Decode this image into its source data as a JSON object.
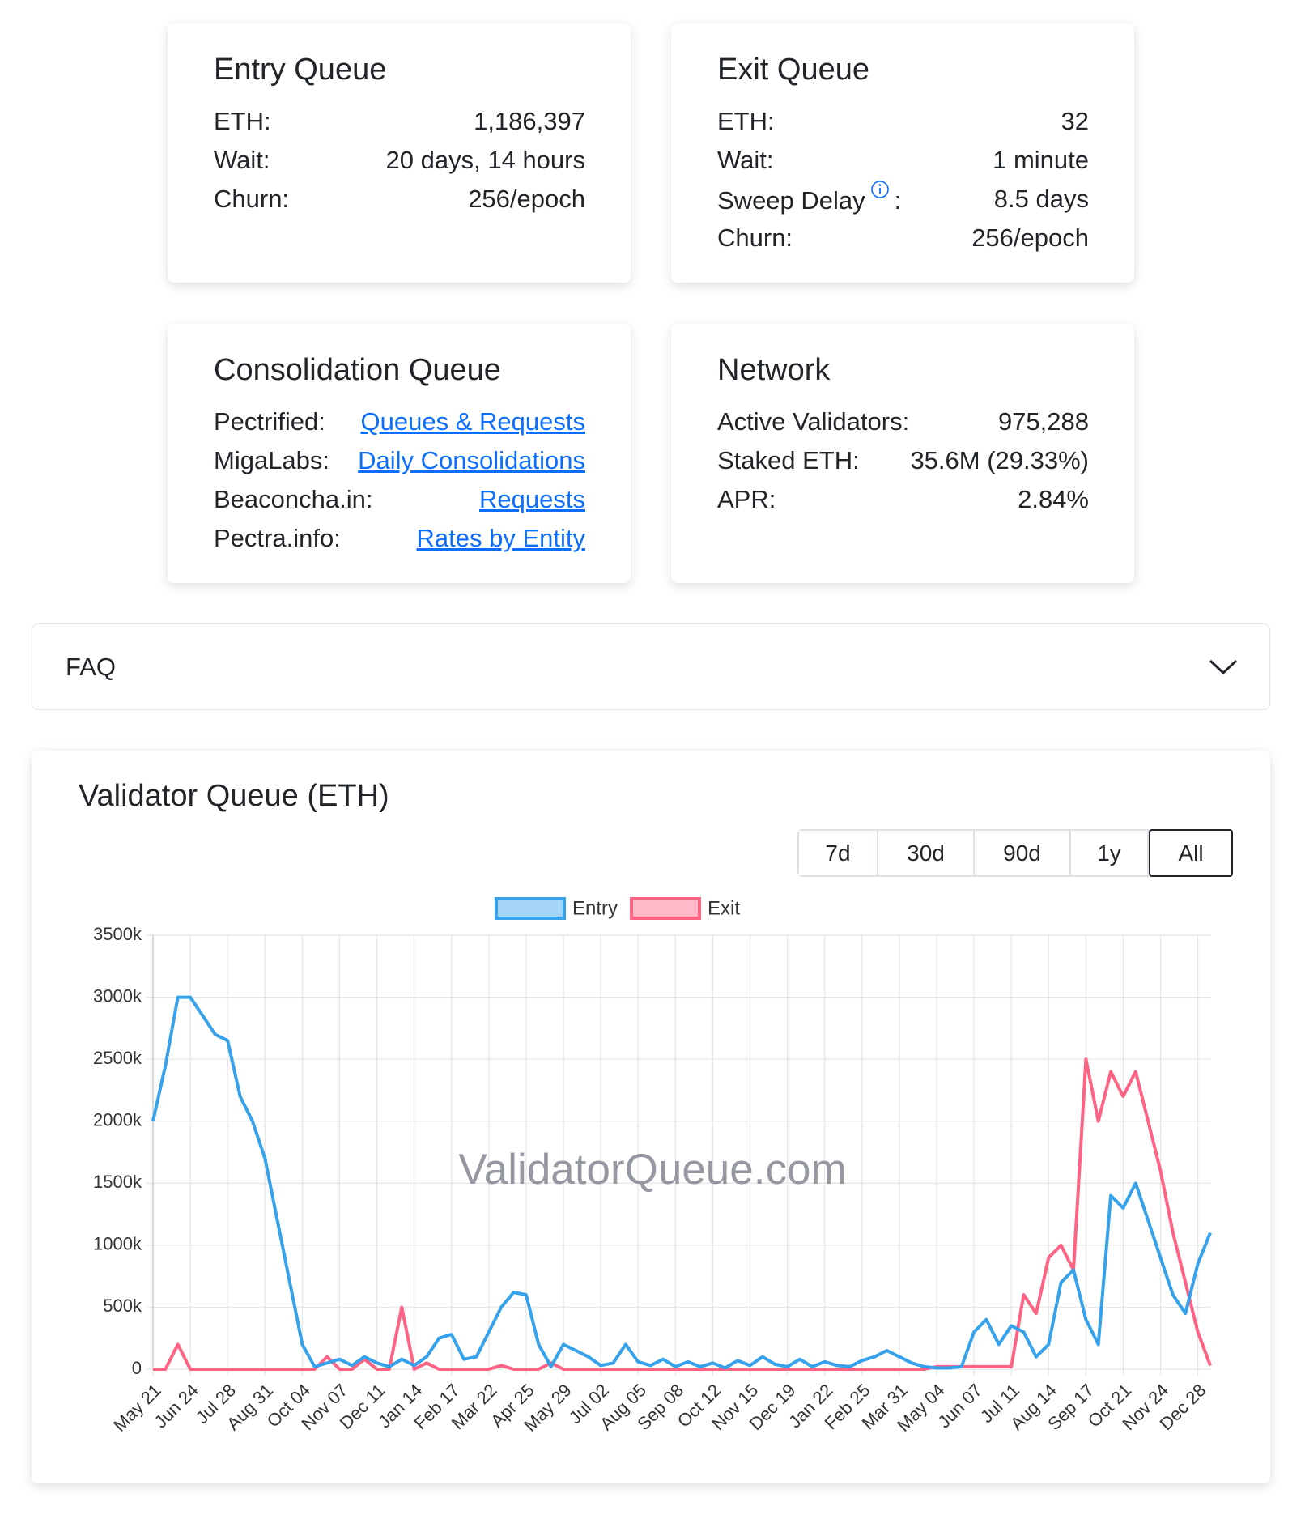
{
  "cards": [
    {
      "title": "Entry Queue",
      "rows": [
        {
          "label": "ETH:",
          "value": "1,186,397"
        },
        {
          "label": "Wait:",
          "value": "20 days, 14 hours"
        },
        {
          "label": "Churn:",
          "value": "256/epoch"
        }
      ]
    },
    {
      "title": "Exit Queue",
      "rows": [
        {
          "label": "ETH:",
          "value": "32"
        },
        {
          "label": "Wait:",
          "value": "1 minute"
        },
        {
          "label": "Sweep Delay",
          "after_icon": ":",
          "value": "8.5 days"
        },
        {
          "label": "Churn:",
          "value": "256/epoch"
        }
      ]
    },
    {
      "title": "Consolidation Queue",
      "rows": [
        {
          "label": "Pectrified:",
          "link": "Queues & Requests"
        },
        {
          "label": "MigaLabs:",
          "link": "Daily Consolidations"
        },
        {
          "label": "Beaconcha.in:",
          "link": "Requests"
        },
        {
          "label": "Pectra.info:",
          "link": "Rates by Entity"
        }
      ]
    },
    {
      "title": "Network",
      "rows": [
        {
          "label": "Active Validators:",
          "value": "975,288"
        },
        {
          "label": "Staked ETH:",
          "value": "35.6M (29.33%)"
        },
        {
          "label": "APR:",
          "value": "2.84%"
        }
      ]
    }
  ],
  "faq": {
    "title": "FAQ"
  },
  "range_buttons": [
    "7d",
    "30d",
    "90d",
    "1y",
    "All"
  ],
  "chart_data": {
    "type": "line",
    "title": "Validator Queue (ETH)",
    "watermark": "ValidatorQueue.com",
    "categories": [
      "May 21",
      null,
      null,
      "Jun 24",
      null,
      null,
      "Jul 28",
      null,
      null,
      "Aug 31",
      null,
      null,
      "Oct 04",
      null,
      null,
      "Nov 07",
      null,
      null,
      "Dec 11",
      null,
      null,
      "Jan 14",
      null,
      null,
      "Feb 17",
      null,
      null,
      "Mar 22",
      null,
      null,
      "Apr 25",
      null,
      null,
      "May 29",
      null,
      null,
      "Jul 02",
      null,
      null,
      "Aug 05",
      null,
      null,
      "Sep 08",
      null,
      null,
      "Oct 12",
      null,
      null,
      "Nov 15",
      null,
      null,
      "Dec 19",
      null,
      null,
      "Jan 22",
      null,
      null,
      "Feb 25",
      null,
      null,
      "Mar 31",
      null,
      null,
      "May 04",
      null,
      null,
      "Jun 07",
      null,
      null,
      "Jul 11",
      null,
      null,
      "Aug 14",
      null,
      null,
      "Sep 17",
      null,
      null,
      "Oct 21",
      null,
      null,
      "Nov 24",
      null,
      null,
      "Dec 28",
      null
    ],
    "series": [
      {
        "name": "Entry",
        "color": "#36a2eb",
        "values": [
          2000,
          2450,
          3000,
          3000,
          2850,
          2700,
          2650,
          2200,
          2000,
          1700,
          1200,
          700,
          200,
          20,
          50,
          80,
          30,
          100,
          50,
          20,
          80,
          30,
          100,
          250,
          280,
          80,
          100,
          300,
          500,
          620,
          600,
          200,
          20,
          200,
          150,
          100,
          30,
          50,
          200,
          60,
          30,
          80,
          20,
          60,
          20,
          50,
          10,
          70,
          30,
          100,
          40,
          20,
          80,
          20,
          60,
          30,
          20,
          70,
          100,
          150,
          100,
          50,
          20,
          10,
          10,
          20,
          300,
          400,
          200,
          350,
          300,
          100,
          200,
          700,
          800,
          400,
          200,
          1400,
          1300,
          1500,
          1200,
          900,
          600,
          450,
          850,
          1100
        ]
      },
      {
        "name": "Exit",
        "color": "#ff6384",
        "values": [
          0,
          0,
          200,
          0,
          0,
          0,
          0,
          0,
          0,
          0,
          0,
          0,
          0,
          0,
          100,
          0,
          0,
          80,
          0,
          0,
          500,
          0,
          50,
          0,
          0,
          0,
          0,
          0,
          30,
          0,
          0,
          0,
          50,
          0,
          0,
          0,
          0,
          0,
          0,
          0,
          0,
          0,
          0,
          0,
          0,
          0,
          0,
          0,
          0,
          0,
          0,
          0,
          0,
          0,
          0,
          0,
          0,
          0,
          0,
          0,
          0,
          0,
          0,
          20,
          20,
          20,
          20,
          20,
          20,
          20,
          600,
          450,
          900,
          1000,
          800,
          2500,
          2000,
          2400,
          2200,
          2400,
          2000,
          1600,
          1100,
          700,
          300,
          30
        ]
      }
    ],
    "ylim": [
      0,
      3500
    ],
    "yticks": [
      0,
      {
        "value": 500,
        "label": "500k"
      },
      {
        "value": 1000,
        "label": "1000k"
      },
      {
        "value": 1500,
        "label": "1500k"
      },
      {
        "value": 2000,
        "label": "2000k"
      },
      {
        "value": 2500,
        "label": "2500k"
      },
      {
        "value": 3000,
        "label": "3000k"
      },
      {
        "value": 3500,
        "label": "3500k"
      }
    ],
    "grid": true,
    "legend": "top"
  }
}
